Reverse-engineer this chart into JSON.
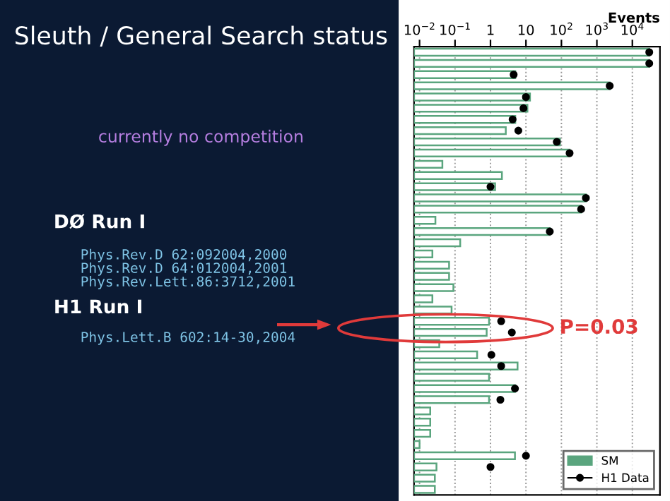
{
  "chart_data": {
    "type": "bar",
    "orientation": "horizontal",
    "title": "Sleuth / General Search status",
    "subtitle": "currently no competition",
    "xlabel": "Events",
    "categories": [
      null,
      null,
      null,
      null,
      null,
      null,
      null,
      null,
      null,
      null,
      null,
      null,
      null,
      null,
      null,
      null,
      null,
      null,
      null,
      null,
      null,
      null,
      null,
      null,
      null,
      null,
      null,
      null,
      null,
      null,
      null,
      null,
      null,
      null,
      null,
      null,
      null,
      null,
      null,
      null
    ],
    "series": [
      {
        "name": "SM",
        "color": "#5aa57e",
        "values": [
          30000,
          30000,
          5,
          2300,
          13,
          11,
          5,
          2.7,
          91,
          170,
          0.044,
          2.1,
          1.35,
          490,
          360,
          0.028,
          47,
          0.14,
          0.023,
          0.068,
          0.068,
          0.09,
          0.023,
          0.08,
          0.91,
          0.78,
          0.036,
          0.42,
          5.8,
          0.91,
          4.9,
          0.91,
          0.02,
          0.02,
          0.02,
          0.01,
          4.9,
          0.03,
          0.027,
          0.027
        ]
      },
      {
        "name": "H1 Data",
        "type": "scatter",
        "color": "#000000",
        "values": [
          30000,
          30000,
          4.5,
          2300,
          10,
          8.5,
          4.2,
          6.1,
          74,
          170,
          null,
          null,
          1.0,
          490,
          360,
          null,
          47,
          null,
          null,
          null,
          null,
          null,
          null,
          null,
          2.0,
          4.0,
          null,
          1.06,
          2.0,
          null,
          4.9,
          1.9,
          null,
          null,
          null,
          null,
          10,
          1.0,
          null,
          null
        ]
      }
    ],
    "log": "x",
    "xlim": [
      0.007,
      60000
    ],
    "xticks": [
      {
        "value": 0.01,
        "label": "10$^{−2}$"
      },
      {
        "value": 0.1,
        "label": "10$^{−1}$"
      },
      1,
      10,
      {
        "value": 100,
        "label": "10$^{2}$"
      },
      {
        "value": 1000,
        "label": "10$^{3}$"
      },
      {
        "value": 10000,
        "label": "10$^{4}$"
      }
    ],
    "grid": "x",
    "marker": "circle",
    "tick_labels": "x",
    "legend": "bottom right",
    "annotations": [
      "DØ Run I",
      "Phys.Rev.D 62:092004,2000",
      "Phys.Rev.D 64:012004,2001",
      "Phys.Rev.Lett.86:3712,2001",
      "H1 Run I",
      "Phys.Lett.B 602:14-30,2004",
      "P=0.03"
    ]
  }
}
